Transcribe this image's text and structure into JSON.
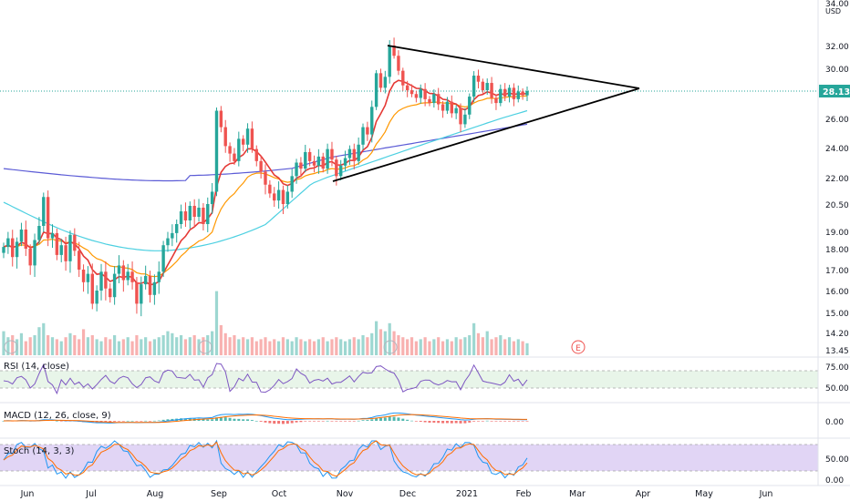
{
  "currency": "USD",
  "last_price": "28.13",
  "price_axis": {
    "ticks": [
      "34.00",
      "32.00",
      "30.00",
      "26.00",
      "24.00",
      "22.00",
      "20.50",
      "19.00",
      "18.00",
      "17.00",
      "16.00",
      "15.00",
      "14.20",
      "13.45"
    ],
    "top_label": "34.00"
  },
  "time_axis": [
    "Jun",
    "Jul",
    "Aug",
    "Sep",
    "Oct",
    "Nov",
    "Dec",
    "2021",
    "Feb",
    "Mar",
    "Apr",
    "May",
    "Jun"
  ],
  "earnings_marker": "E",
  "indicators": {
    "rsi": {
      "label": "RSI (14, close)",
      "ticks": [
        "75.00",
        "50.00"
      ]
    },
    "macd": {
      "label": "MACD (12, 26, close, 9)",
      "ticks": [
        "0.00"
      ]
    },
    "stoch": {
      "label": "Stoch (14, 3, 3)",
      "ticks": [
        "50.00",
        "0.00"
      ]
    }
  },
  "colors": {
    "up": "#26a69a",
    "down": "#ef5350",
    "ema_fast": "#e53935",
    "ema_mid": "#ff9800",
    "sma_long": "#4dd0e1",
    "sma_200": "#5b5bd6",
    "rsi_line": "#7e57c2",
    "macd_line": "#2196f3",
    "signal_line": "#ff6d00",
    "stoch_k": "#2196f3",
    "stoch_d": "#ff6d00",
    "price_tag": "#26a69a"
  },
  "chart_data": {
    "type": "candlestick",
    "series": [
      {
        "name": "Price",
        "values": [
          18.1,
          18.6,
          17.6,
          18.4,
          19.1,
          18.0,
          17.2,
          18.5,
          19.3,
          20.9,
          18.6,
          18.9,
          17.7,
          18.2,
          17.4,
          18.8,
          17.9,
          17.0,
          16.4,
          16.8,
          15.4,
          16.0,
          16.9,
          16.1,
          15.7,
          16.8,
          17.2,
          16.5,
          16.9,
          16.4,
          15.4,
          16.3,
          16.7,
          15.8,
          16.4,
          16.9,
          18.2,
          18.6,
          18.9,
          19.4,
          20.1,
          19.6,
          20.4,
          19.8,
          20.3,
          19.4,
          20.5,
          21.2,
          26.6,
          25.4,
          24.1,
          23.6,
          23.1,
          24.6,
          24.2,
          25.3,
          23.9,
          23.1,
          22.4,
          21.6,
          21.1,
          20.7,
          21.3,
          20.5,
          21.2,
          22.1,
          23.0,
          22.6,
          23.7,
          23.1,
          22.8,
          23.4,
          22.6,
          23.9,
          23.2,
          22.1,
          22.8,
          23.3,
          23.9,
          23.1,
          24.2,
          25.4,
          24.9,
          26.9,
          29.6,
          28.4,
          29.3,
          32.0,
          31.1,
          29.8,
          28.6,
          28.2,
          27.9,
          27.6,
          28.3,
          27.5,
          27.2,
          27.9,
          27.1,
          26.6,
          27.3,
          26.4,
          26.8,
          25.6,
          26.3,
          27.7,
          29.4,
          28.9,
          28.2,
          28.8,
          27.6,
          27.2,
          28.3,
          27.7,
          28.4,
          27.5,
          28.1,
          27.8,
          28.13
        ]
      },
      {
        "name": "Volume",
        "values": [
          1.2,
          0.9,
          1.0,
          0.8,
          1.1,
          0.7,
          0.9,
          1.0,
          1.4,
          1.6,
          1.0,
          0.9,
          0.8,
          0.7,
          0.9,
          1.1,
          1.0,
          0.8,
          1.3,
          0.9,
          1.0,
          0.8,
          0.7,
          0.9,
          0.8,
          1.0,
          0.7,
          0.8,
          0.9,
          0.7,
          1.0,
          0.8,
          0.9,
          0.7,
          0.8,
          0.9,
          1.0,
          1.2,
          1.1,
          0.9,
          1.0,
          0.8,
          0.9,
          1.0,
          0.8,
          0.9,
          1.0,
          1.2,
          3.2,
          1.5,
          1.1,
          0.9,
          1.0,
          0.8,
          0.9,
          0.8,
          0.9,
          0.7,
          0.8,
          0.9,
          0.7,
          0.8,
          0.7,
          0.9,
          0.8,
          0.7,
          0.9,
          0.8,
          0.7,
          0.8,
          0.7,
          0.8,
          0.9,
          0.7,
          0.8,
          0.9,
          0.8,
          0.7,
          0.8,
          0.9,
          0.8,
          1.0,
          0.9,
          1.1,
          1.7,
          1.3,
          1.2,
          1.6,
          1.2,
          1.0,
          0.9,
          0.8,
          0.9,
          0.7,
          0.8,
          0.9,
          0.7,
          0.8,
          0.9,
          0.7,
          0.8,
          0.7,
          0.9,
          0.8,
          0.9,
          1.0,
          1.6,
          1.1,
          0.9,
          1.2,
          0.8,
          0.9,
          1.0,
          0.8,
          0.9,
          0.7,
          0.8,
          0.7,
          0.6
        ]
      }
    ],
    "annotations": [
      "symmetrical triangle trendlines"
    ]
  }
}
